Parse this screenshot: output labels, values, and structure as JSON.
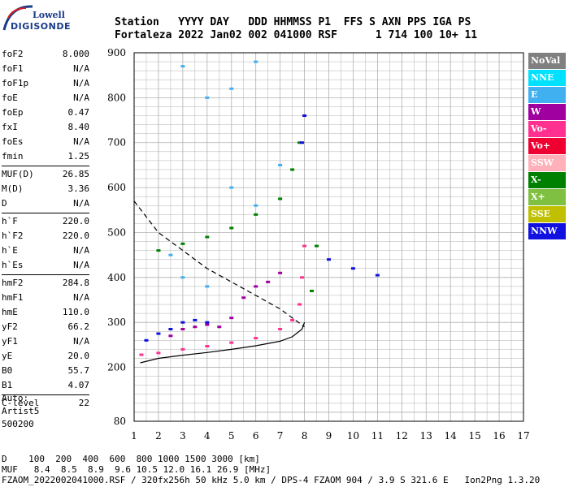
{
  "logo": {
    "line1": "Lowell",
    "line2": "DIGISONDE"
  },
  "header": {
    "labels": "Station   YYYY DAY   DDD HHMMSS P1  FFS S AXN PPS IGA PS",
    "values": "Fortaleza 2022 Jan02 002 041000 RSF      1 714 100 10+ 11"
  },
  "params": [
    {
      "name": "foF2",
      "value": "8.000"
    },
    {
      "name": "foF1",
      "value": "N/A"
    },
    {
      "name": "foF1p",
      "value": "N/A"
    },
    {
      "name": "foE",
      "value": "N/A"
    },
    {
      "name": "foEp",
      "value": "0.47"
    },
    {
      "name": "fxI",
      "value": "8.40"
    },
    {
      "name": "foEs",
      "value": "N/A"
    },
    {
      "name": "fmin",
      "value": "1.25"
    },
    {
      "sep": true
    },
    {
      "name": "MUF(D)",
      "value": "26.85"
    },
    {
      "name": "M(D)",
      "value": "3.36"
    },
    {
      "name": "D",
      "value": "N/A"
    },
    {
      "sep": true
    },
    {
      "name": "h`F",
      "value": "220.0"
    },
    {
      "name": "h`F2",
      "value": "220.0"
    },
    {
      "name": "h`E",
      "value": "N/A"
    },
    {
      "name": "h`Es",
      "value": "N/A"
    },
    {
      "sep": true
    },
    {
      "name": "hmF2",
      "value": "284.8"
    },
    {
      "name": "hmF1",
      "value": "N/A"
    },
    {
      "name": "hmE",
      "value": "110.0"
    },
    {
      "name": "yF2",
      "value": "66.2"
    },
    {
      "name": "yF1",
      "value": "N/A"
    },
    {
      "name": "yE",
      "value": "20.0"
    },
    {
      "name": "B0",
      "value": "55.7"
    },
    {
      "name": "B1",
      "value": "4.07"
    },
    {
      "sep": true
    },
    {
      "name": "C-level",
      "value": "22"
    }
  ],
  "auto": {
    "line1": "Auto:",
    "line2": "Artist5",
    "line3": "500200"
  },
  "footer": {
    "d_row": "D    100  200  400  600  800 1000 1500 3000 [km]",
    "muf_row": "MUF   8.4  8.5  8.9  9.6 10.5 12.0 16.1 26.9 [MHz]",
    "info": "FZAOM_2022002041000.RSF / 320fx256h 50 kHz 5.0 km / DPS-4 FZAOM 904 / 3.9 S 321.6 E   Ion2Png 1.3.20"
  },
  "legend": [
    {
      "label": "NoVal",
      "color": "#808080"
    },
    {
      "label": "NNE",
      "color": "#00e0ff"
    },
    {
      "label": "E",
      "color": "#40b0f0"
    },
    {
      "label": "W",
      "color": "#a000a0"
    },
    {
      "label": "Vo-",
      "color": "#ff3090"
    },
    {
      "label": "Vo+",
      "color": "#f00030"
    },
    {
      "label": "SSW",
      "color": "#ffb0b8"
    },
    {
      "label": "X-",
      "color": "#008000"
    },
    {
      "label": "X+",
      "color": "#80c040"
    },
    {
      "label": "SSE",
      "color": "#c0c000"
    },
    {
      "label": "NNW",
      "color": "#1010e0"
    }
  ],
  "chart_data": {
    "type": "scatter",
    "xlim": [
      1,
      17
    ],
    "ylim": [
      80,
      900
    ],
    "x_ticks": [
      1,
      2,
      3,
      4,
      5,
      6,
      7,
      8,
      9,
      10,
      11,
      12,
      13,
      14,
      15,
      16,
      17
    ],
    "y_ticks": [
      80,
      200,
      300,
      400,
      500,
      600,
      700,
      800,
      900
    ],
    "grid": true,
    "series": [
      {
        "name": "Vo-",
        "color": "#ff3090",
        "points": [
          [
            1.3,
            228
          ],
          [
            2,
            232
          ],
          [
            3,
            240
          ],
          [
            4,
            247
          ],
          [
            5,
            255
          ],
          [
            6,
            265
          ],
          [
            7,
            285
          ],
          [
            7.5,
            305
          ],
          [
            7.8,
            340
          ],
          [
            7.9,
            400
          ],
          [
            8,
            470
          ]
        ]
      },
      {
        "name": "X-",
        "color": "#008000",
        "points": [
          [
            2,
            460
          ],
          [
            3,
            475
          ],
          [
            4,
            490
          ],
          [
            5,
            510
          ],
          [
            6,
            540
          ],
          [
            7,
            575
          ],
          [
            7.5,
            640
          ],
          [
            7.8,
            700
          ],
          [
            8.3,
            370
          ],
          [
            8.5,
            470
          ]
        ]
      },
      {
        "name": "W",
        "color": "#a000a0",
        "points": [
          [
            2.5,
            270
          ],
          [
            3,
            285
          ],
          [
            3.5,
            290
          ],
          [
            4,
            295
          ],
          [
            4.5,
            290
          ],
          [
            5,
            310
          ],
          [
            5.5,
            355
          ],
          [
            6,
            380
          ],
          [
            6.5,
            390
          ],
          [
            7,
            410
          ]
        ]
      },
      {
        "name": "NNW",
        "color": "#1010e0",
        "points": [
          [
            1.5,
            260
          ],
          [
            2,
            275
          ],
          [
            2.5,
            285
          ],
          [
            3,
            300
          ],
          [
            3.5,
            305
          ],
          [
            4,
            300
          ],
          [
            7.9,
            700
          ],
          [
            8,
            760
          ],
          [
            9,
            440
          ],
          [
            10,
            420
          ],
          [
            11,
            405
          ]
        ]
      },
      {
        "name": "E",
        "color": "#40b0f0",
        "points": [
          [
            2.5,
            450
          ],
          [
            3,
            400
          ],
          [
            4,
            380
          ],
          [
            5,
            600
          ],
          [
            6,
            560
          ],
          [
            4,
            800
          ],
          [
            5,
            820
          ],
          [
            6,
            880
          ],
          [
            3,
            870
          ],
          [
            7,
            650
          ]
        ]
      }
    ],
    "curves": [
      {
        "name": "profile",
        "points": [
          [
            1.25,
            210
          ],
          [
            2,
            220
          ],
          [
            3,
            227
          ],
          [
            4,
            233
          ],
          [
            5,
            240
          ],
          [
            6,
            248
          ],
          [
            7,
            258
          ],
          [
            7.5,
            268
          ],
          [
            7.9,
            285
          ],
          [
            8,
            300
          ]
        ]
      },
      {
        "name": "dashed",
        "points": [
          [
            1,
            570
          ],
          [
            2,
            500
          ],
          [
            3,
            460
          ],
          [
            4,
            420
          ],
          [
            5,
            390
          ],
          [
            6,
            360
          ],
          [
            7,
            330
          ],
          [
            8,
            290
          ]
        ]
      }
    ]
  }
}
